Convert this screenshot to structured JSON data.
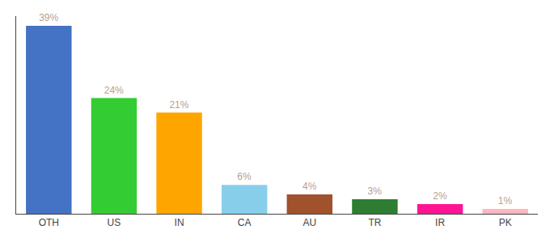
{
  "chart_data": {
    "type": "bar",
    "categories": [
      "OTH",
      "US",
      "IN",
      "CA",
      "AU",
      "TR",
      "IR",
      "PK"
    ],
    "values": [
      39,
      24,
      21,
      6,
      4,
      3,
      2,
      1
    ],
    "value_labels": [
      "39%",
      "24%",
      "21%",
      "6%",
      "4%",
      "3%",
      "2%",
      "1%"
    ],
    "colors": [
      "#4472C4",
      "#33CC33",
      "#FFA500",
      "#87CEEB",
      "#A0522D",
      "#2E7D32",
      "#FF1493",
      "#FFB6C1"
    ],
    "ylim": [
      0,
      41
    ],
    "data_labels": true,
    "tick_labels": "x",
    "grid": false
  }
}
